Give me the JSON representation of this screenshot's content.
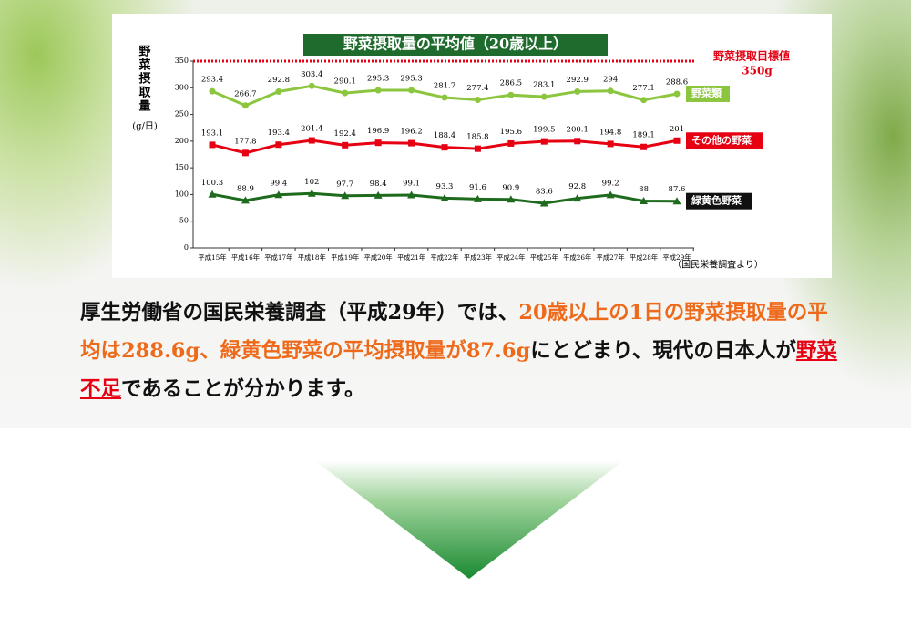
{
  "chart_data": {
    "type": "line",
    "title": "野菜摂取量の平均値（20歳以上）",
    "y_label": "野菜摂取量",
    "y_unit": "(g/日)",
    "source": "（国民栄養調査より）",
    "categories": [
      "平成15年",
      "平成16年",
      "平成17年",
      "平成18年",
      "平成19年",
      "平成20年",
      "平成21年",
      "平成22年",
      "平成23年",
      "平成24年",
      "平成25年",
      "平成26年",
      "平成27年",
      "平成28年",
      "平成29年"
    ],
    "series": [
      {
        "name": "野菜類",
        "color": "#8cc63f",
        "label_box_color": "#8cc63f",
        "marker": "circle",
        "values": [
          293.4,
          266.7,
          292.8,
          303.4,
          290.1,
          295.3,
          295.3,
          281.7,
          277.4,
          286.5,
          283.1,
          292.9,
          294,
          277.1,
          288.6
        ]
      },
      {
        "name": "その他の野菜",
        "color": "#e60012",
        "label_box_color": "#e60012",
        "marker": "square",
        "values": [
          193.1,
          177.8,
          193.4,
          201.4,
          192.4,
          196.9,
          196.2,
          188.4,
          185.8,
          195.6,
          199.5,
          200.1,
          194.8,
          189.1,
          201
        ]
      },
      {
        "name": "緑黄色野菜",
        "color": "#1e6b1e",
        "label_box_color": "#111111",
        "marker": "triangle",
        "values": [
          100.3,
          88.9,
          99.4,
          102,
          97.7,
          98.4,
          99.1,
          93.3,
          91.6,
          90.9,
          83.6,
          92.8,
          99.2,
          88,
          87.6
        ]
      }
    ],
    "target": {
      "label": "野菜摂取目標値",
      "value": 350,
      "value_label": "350g",
      "color": "#e60012"
    },
    "ylim": [
      0,
      350
    ],
    "yticks": [
      0,
      50,
      100,
      150,
      200,
      250,
      300,
      350
    ]
  },
  "text": {
    "segments": [
      {
        "text": "厚生労働省の国民栄養調査（平成29年）では、",
        "style": "normal"
      },
      {
        "text": "20歳以上の1日の野菜摂取量の平均は288.6g、緑黄色野菜の平均摂取量が87.6g",
        "style": "orange"
      },
      {
        "text": "にとどまり、現代の日本人が",
        "style": "normal"
      },
      {
        "text": "野菜不足",
        "style": "red"
      },
      {
        "text": "であることが分かります。",
        "style": "normal"
      }
    ]
  }
}
